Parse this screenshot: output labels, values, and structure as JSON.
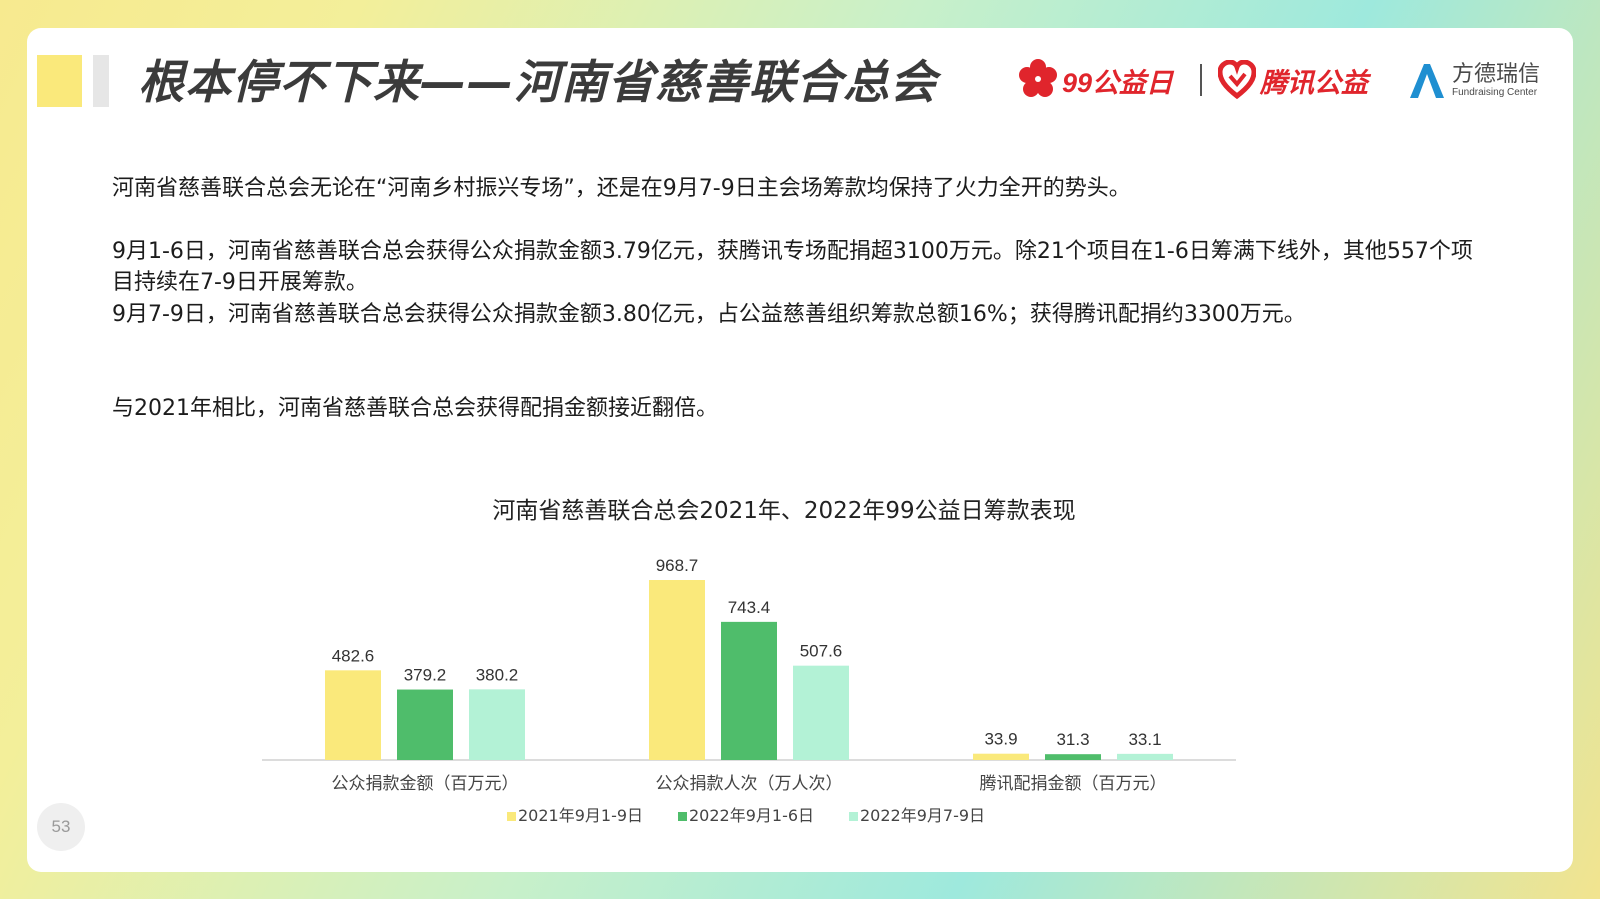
{
  "slide": {
    "title": "根本停不下来——河南省慈善联合总会",
    "page_number": "53"
  },
  "logos": {
    "logo1": {
      "text": "99公益日",
      "icon": "red-flower-icon",
      "color": "#e0252c"
    },
    "logo2": {
      "text": "腾讯公益",
      "icon": "red-heart-icon",
      "color": "#e0252c"
    },
    "logo3": {
      "text_cn": "方德瑞信",
      "text_en": "Fundraising Center",
      "icon": "blue-a-icon",
      "color": "#1f8fd1"
    }
  },
  "paragraphs": [
    "河南省慈善联合总会无论在“河南乡村振兴专场”，还是在9月7-9日主会场筹款均保持了火力全开的势头。",
    "9月1-6日，河南省慈善联合总会获得公众捐款金额3.79亿元，获腾讯专场配捐超3100万元。除21个项目在1-6日筹满下线外，其他557个项目持续在7-9日开展筹款。",
    "9月7-9日，河南省慈善联合总会获得公众捐款金额3.80亿元，占公益慈善组织筹款总额16%；获得腾讯配捐约3300万元。",
    "与2021年相比，河南省慈善联合总会获得配捐金额接近翻倍。"
  ],
  "chart_data": {
    "type": "bar",
    "title": "河南省慈善联合总会2021年、2022年99公益日筹款表现",
    "categories": [
      "公众捐款金额（百万元）",
      "公众捐款人次（万人次）",
      "腾讯配捐金额（百万元）"
    ],
    "series": [
      {
        "name": "2021年9月1-9日",
        "values": [
          482.6,
          968.7,
          33.9
        ],
        "labels": [
          "482.6",
          "968.7",
          "33.9"
        ],
        "color": "#fae97b"
      },
      {
        "name": "2022年9月1-6日",
        "values": [
          379.2,
          743.4,
          31.3
        ],
        "labels": [
          "379.2",
          "743.4",
          "31.3"
        ],
        "color": "#4fbd6b"
      },
      {
        "name": "2022年9月7-9日",
        "values": [
          380.2,
          507.6,
          33.1
        ],
        "labels": [
          "380.2",
          "507.6",
          "33.1"
        ],
        "color": "#b3f2d6"
      }
    ],
    "ylim": [
      0,
      968.7
    ],
    "grid": false,
    "legend_position": "bottom",
    "axis_color": "#d0d0d0"
  }
}
